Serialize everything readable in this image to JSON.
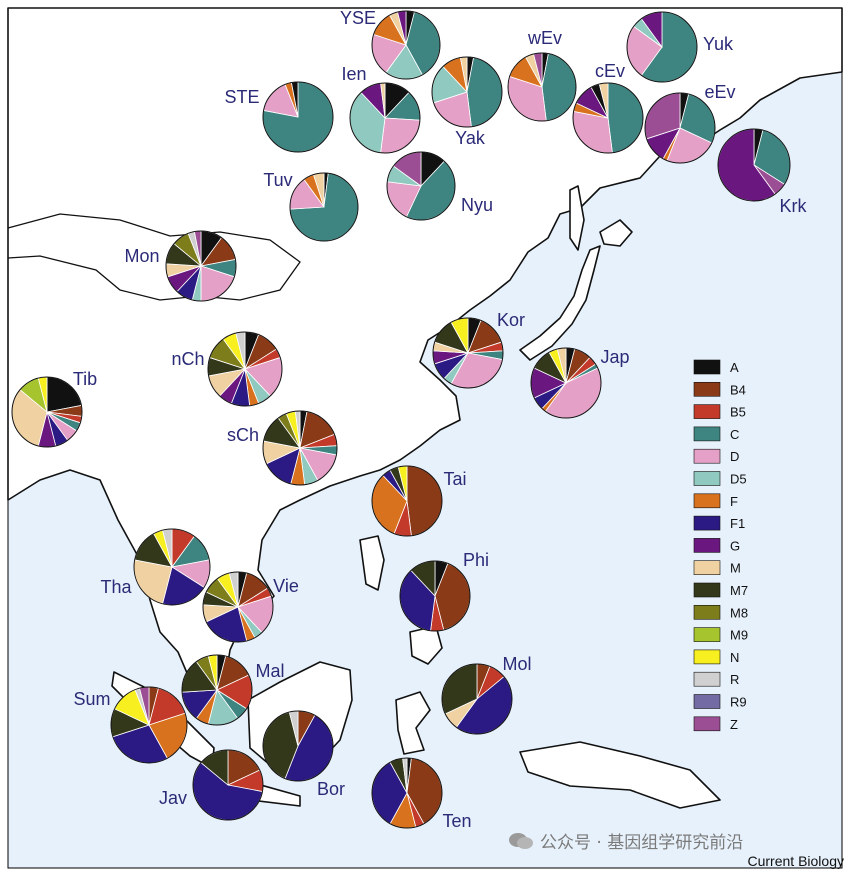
{
  "legend": [
    {
      "key": "A",
      "label": "A",
      "color": "#111111"
    },
    {
      "key": "B4",
      "label": "B4",
      "color": "#8a3a17"
    },
    {
      "key": "B5",
      "label": "B5",
      "color": "#c43a2a"
    },
    {
      "key": "C",
      "label": "C",
      "color": "#3e8480"
    },
    {
      "key": "D",
      "label": "D",
      "color": "#e4a0c6"
    },
    {
      "key": "D5",
      "label": "D5",
      "color": "#8fc9bf"
    },
    {
      "key": "F",
      "label": "F",
      "color": "#d9721e"
    },
    {
      "key": "F1",
      "label": "F1",
      "color": "#2b1a84"
    },
    {
      "key": "G",
      "label": "G",
      "color": "#6a1880"
    },
    {
      "key": "M",
      "label": "M",
      "color": "#efd1a2"
    },
    {
      "key": "M7",
      "label": "M7",
      "color": "#33381a"
    },
    {
      "key": "M8",
      "label": "M8",
      "color": "#7d7e1b"
    },
    {
      "key": "M9",
      "label": "M9",
      "color": "#a6c42e"
    },
    {
      "key": "N",
      "label": "N",
      "color": "#f7ef1f"
    },
    {
      "key": "R",
      "label": "R",
      "color": "#d0d0d0"
    },
    {
      "key": "R9",
      "label": "R9",
      "color": "#736ca4"
    },
    {
      "key": "Z",
      "label": "Z",
      "color": "#9c4e94"
    }
  ],
  "populations": [
    {
      "name": "YSE",
      "slices": [
        [
          "A",
          4
        ],
        [
          "C",
          38
        ],
        [
          "D5",
          18
        ],
        [
          "D",
          20
        ],
        [
          "F",
          12
        ],
        [
          "M",
          4
        ],
        [
          "G",
          4
        ]
      ]
    },
    {
      "name": "STE",
      "slices": [
        [
          "C",
          78
        ],
        [
          "D",
          16
        ],
        [
          "F",
          3
        ],
        [
          "A",
          3
        ]
      ]
    },
    {
      "name": "Ien",
      "slices": [
        [
          "A",
          12
        ],
        [
          "C",
          14
        ],
        [
          "D",
          26
        ],
        [
          "D5",
          36
        ],
        [
          "G",
          10
        ],
        [
          "M",
          2
        ]
      ]
    },
    {
      "name": "Yak",
      "slices": [
        [
          "A",
          3
        ],
        [
          "C",
          45
        ],
        [
          "D",
          22
        ],
        [
          "D5",
          18
        ],
        [
          "F",
          9
        ],
        [
          "M",
          3
        ]
      ]
    },
    {
      "name": "wEv",
      "slices": [
        [
          "A",
          3
        ],
        [
          "C",
          45
        ],
        [
          "D",
          32
        ],
        [
          "F",
          12
        ],
        [
          "M",
          4
        ],
        [
          "Z",
          4
        ]
      ]
    },
    {
      "name": "cEv",
      "slices": [
        [
          "C",
          48
        ],
        [
          "D",
          30
        ],
        [
          "F",
          4
        ],
        [
          "G",
          10
        ],
        [
          "A",
          4
        ],
        [
          "M",
          4
        ]
      ]
    },
    {
      "name": "Yuk",
      "slices": [
        [
          "C",
          60
        ],
        [
          "D",
          25
        ],
        [
          "D5",
          5
        ],
        [
          "G",
          10
        ]
      ]
    },
    {
      "name": "eEv",
      "slices": [
        [
          "A",
          4
        ],
        [
          "C",
          28
        ],
        [
          "D",
          24
        ],
        [
          "F",
          2
        ],
        [
          "G",
          12
        ],
        [
          "Z",
          30
        ]
      ]
    },
    {
      "name": "Krk",
      "slices": [
        [
          "A",
          4
        ],
        [
          "C",
          30
        ],
        [
          "Z",
          6
        ],
        [
          "G",
          60
        ]
      ]
    },
    {
      "name": "Tuv",
      "slices": [
        [
          "A",
          2
        ],
        [
          "C",
          72
        ],
        [
          "D",
          16
        ],
        [
          "F",
          5
        ],
        [
          "M",
          5
        ]
      ]
    },
    {
      "name": "Nyu",
      "slices": [
        [
          "A",
          12
        ],
        [
          "C",
          45
        ],
        [
          "D",
          20
        ],
        [
          "D5",
          8
        ],
        [
          "Z",
          15
        ]
      ]
    },
    {
      "name": "Mon",
      "slices": [
        [
          "A",
          10
        ],
        [
          "B4",
          12
        ],
        [
          "C",
          8
        ],
        [
          "D",
          20
        ],
        [
          "D5",
          4
        ],
        [
          "F1",
          8
        ],
        [
          "G",
          8
        ],
        [
          "M",
          6
        ],
        [
          "M7",
          10
        ],
        [
          "M8",
          8
        ],
        [
          "R",
          3
        ],
        [
          "Z",
          3
        ]
      ]
    },
    {
      "name": "nCh",
      "slices": [
        [
          "A",
          6
        ],
        [
          "B4",
          10
        ],
        [
          "B5",
          4
        ],
        [
          "D",
          18
        ],
        [
          "D5",
          6
        ],
        [
          "F",
          4
        ],
        [
          "F1",
          8
        ],
        [
          "G",
          6
        ],
        [
          "M",
          10
        ],
        [
          "M7",
          8
        ],
        [
          "M8",
          10
        ],
        [
          "N",
          6
        ],
        [
          "R",
          4
        ]
      ]
    },
    {
      "name": "Tib",
      "slices": [
        [
          "A",
          22
        ],
        [
          "B4",
          5
        ],
        [
          "B5",
          3
        ],
        [
          "C",
          4
        ],
        [
          "D",
          6
        ],
        [
          "F1",
          6
        ],
        [
          "G",
          8
        ],
        [
          "M",
          32
        ],
        [
          "M9",
          10
        ],
        [
          "N",
          4
        ]
      ]
    },
    {
      "name": "sCh",
      "slices": [
        [
          "A",
          3
        ],
        [
          "B4",
          16
        ],
        [
          "B5",
          5
        ],
        [
          "C",
          4
        ],
        [
          "D",
          14
        ],
        [
          "D5",
          6
        ],
        [
          "F",
          6
        ],
        [
          "F1",
          14
        ],
        [
          "M",
          10
        ],
        [
          "M7",
          12
        ],
        [
          "M8",
          4
        ],
        [
          "N",
          4
        ],
        [
          "R",
          2
        ]
      ]
    },
    {
      "name": "Kor",
      "slices": [
        [
          "A",
          6
        ],
        [
          "B4",
          14
        ],
        [
          "B5",
          4
        ],
        [
          "C",
          4
        ],
        [
          "D",
          30
        ],
        [
          "D5",
          4
        ],
        [
          "F1",
          8
        ],
        [
          "G",
          6
        ],
        [
          "M",
          4
        ],
        [
          "M7",
          12
        ],
        [
          "N",
          8
        ]
      ]
    },
    {
      "name": "Jap",
      "slices": [
        [
          "A",
          4
        ],
        [
          "B4",
          8
        ],
        [
          "B5",
          4
        ],
        [
          "C",
          2
        ],
        [
          "D",
          42
        ],
        [
          "F",
          2
        ],
        [
          "F1",
          6
        ],
        [
          "G",
          14
        ],
        [
          "M7",
          10
        ],
        [
          "N",
          4
        ],
        [
          "M",
          4
        ]
      ]
    },
    {
      "name": "Tai",
      "slices": [
        [
          "B4",
          48
        ],
        [
          "B5",
          8
        ],
        [
          "F",
          32
        ],
        [
          "F1",
          4
        ],
        [
          "M7",
          4
        ],
        [
          "N",
          4
        ]
      ]
    },
    {
      "name": "Tha",
      "slices": [
        [
          "B5",
          10
        ],
        [
          "C",
          12
        ],
        [
          "D",
          12
        ],
        [
          "F1",
          20
        ],
        [
          "M",
          24
        ],
        [
          "M7",
          14
        ],
        [
          "N",
          4
        ],
        [
          "R",
          4
        ]
      ]
    },
    {
      "name": "Vie",
      "slices": [
        [
          "A",
          4
        ],
        [
          "B4",
          12
        ],
        [
          "B5",
          4
        ],
        [
          "D",
          18
        ],
        [
          "D5",
          4
        ],
        [
          "F",
          4
        ],
        [
          "F1",
          22
        ],
        [
          "M",
          8
        ],
        [
          "M7",
          6
        ],
        [
          "M8",
          8
        ],
        [
          "N",
          6
        ],
        [
          "R",
          4
        ]
      ]
    },
    {
      "name": "Phi",
      "slices": [
        [
          "A",
          6
        ],
        [
          "B4",
          40
        ],
        [
          "B5",
          6
        ],
        [
          "F1",
          36
        ],
        [
          "M7",
          12
        ]
      ]
    },
    {
      "name": "Mal",
      "slices": [
        [
          "A",
          4
        ],
        [
          "B4",
          14
        ],
        [
          "B5",
          16
        ],
        [
          "C",
          6
        ],
        [
          "D5",
          14
        ],
        [
          "F",
          6
        ],
        [
          "F1",
          14
        ],
        [
          "M7",
          16
        ],
        [
          "M8",
          6
        ],
        [
          "N",
          4
        ]
      ]
    },
    {
      "name": "Sum",
      "slices": [
        [
          "B4",
          4
        ],
        [
          "B5",
          16
        ],
        [
          "F",
          22
        ],
        [
          "F1",
          28
        ],
        [
          "M7",
          12
        ],
        [
          "N",
          12
        ],
        [
          "R",
          2
        ],
        [
          "Z",
          4
        ]
      ]
    },
    {
      "name": "Mol",
      "slices": [
        [
          "B4",
          6
        ],
        [
          "B5",
          8
        ],
        [
          "F1",
          46
        ],
        [
          "M",
          8
        ],
        [
          "M7",
          32
        ]
      ]
    },
    {
      "name": "Bor",
      "slices": [
        [
          "B4",
          8
        ],
        [
          "F1",
          48
        ],
        [
          "M7",
          40
        ],
        [
          "R",
          4
        ]
      ]
    },
    {
      "name": "Jav",
      "slices": [
        [
          "B4",
          18
        ],
        [
          "B5",
          10
        ],
        [
          "F1",
          58
        ],
        [
          "M7",
          14
        ]
      ]
    },
    {
      "name": "Ten",
      "slices": [
        [
          "A",
          2
        ],
        [
          "B4",
          40
        ],
        [
          "B5",
          4
        ],
        [
          "F",
          12
        ],
        [
          "F1",
          34
        ],
        [
          "M7",
          6
        ],
        [
          "R",
          2
        ]
      ]
    }
  ],
  "credit": "Current Biology",
  "watermark": "公众号 · 基因组学研究前沿"
}
